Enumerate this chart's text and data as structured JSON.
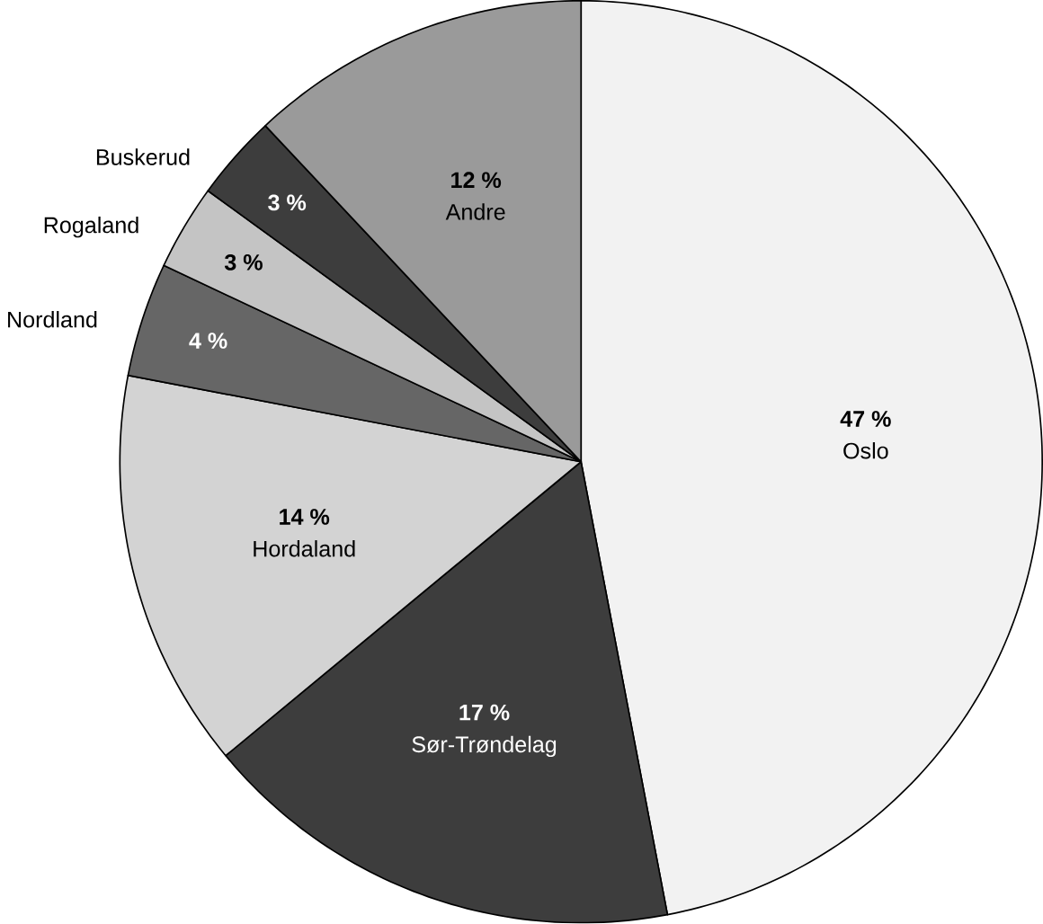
{
  "chart_data": {
    "type": "pie",
    "categories": [
      "Oslo",
      "Sør-Trøndelag",
      "Hordaland",
      "Nordland",
      "Rogaland",
      "Buskerud",
      "Andre"
    ],
    "values": [
      47,
      17,
      14,
      4,
      3,
      3,
      12
    ],
    "colors": [
      "#f2f2f2",
      "#3d3d3d",
      "#d3d3d3",
      "#666666",
      "#c4c4c4",
      "#3d3d3d",
      "#9a9a9a"
    ],
    "value_labels": [
      "47 %",
      "17 %",
      "14 %",
      "4 %",
      "3 %",
      "3 %",
      "12 %"
    ]
  }
}
